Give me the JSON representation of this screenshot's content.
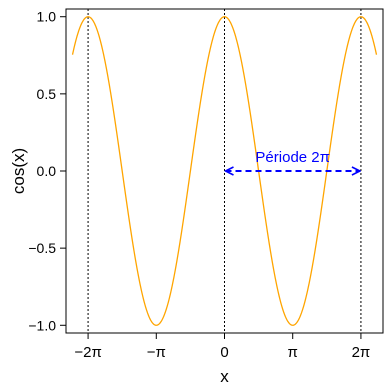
{
  "chart_data": {
    "type": "line",
    "title": "",
    "xlabel": "x",
    "ylabel": "cos(x)",
    "xlim": [
      -7.3,
      7.3
    ],
    "ylim": [
      -1.05,
      1.05
    ],
    "x_ticks": [
      -6.283185,
      -3.141593,
      0,
      3.141593,
      6.283185
    ],
    "x_tick_labels": [
      "−2π",
      "−π",
      "0",
      "π",
      "2π"
    ],
    "y_ticks": [
      -1.0,
      -0.5,
      0.0,
      0.5,
      1.0
    ],
    "y_tick_labels": [
      "−1.0",
      "−0.5",
      "0.0",
      "0.5",
      "1.0"
    ],
    "grid": false,
    "series": [
      {
        "function": "cos",
        "x_range": [
          -7.0,
          7.0
        ],
        "color": "#FFA500"
      }
    ],
    "vertical_lines": [
      {
        "x": -6.283185,
        "style": "dotted",
        "color": "#000000"
      },
      {
        "x": 0,
        "style": "dotted",
        "color": "#000000"
      },
      {
        "x": 6.283185,
        "style": "dotted",
        "color": "#000000"
      }
    ],
    "annotations": [
      {
        "type": "double-arrow",
        "x_from": 0,
        "x_to": 6.283185,
        "y": 0,
        "style": "dashed",
        "color": "#0000FF",
        "label": "Période 2π"
      }
    ]
  }
}
